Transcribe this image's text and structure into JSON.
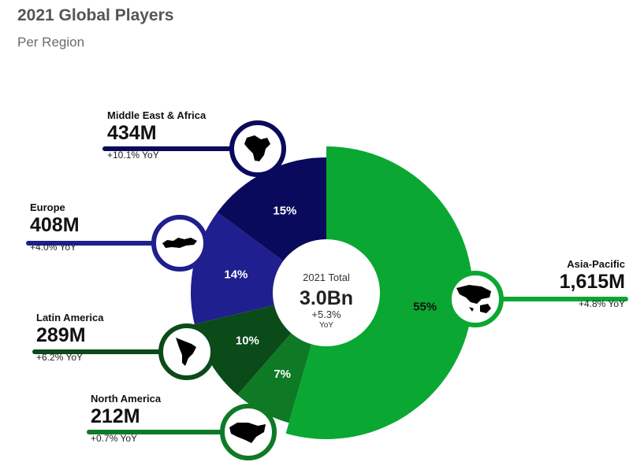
{
  "title": "2021 Global Players",
  "subtitle": "Per Region",
  "chart_data": {
    "type": "pie",
    "title": "2021 Global Players",
    "subtitle": "Per Region",
    "center": {
      "label": "2021 Total",
      "value": "3.0Bn",
      "growth": "+5.3%",
      "growth_unit": "YoY"
    },
    "slices": [
      {
        "name": "Asia-Pacific",
        "share": 55,
        "share_label": "55%",
        "players": "1,615M",
        "players_m": 1615,
        "yoy": "+4.8% YoY",
        "yoy_pct": 4.8,
        "color": "#0aa832"
      },
      {
        "name": "North America",
        "share": 7,
        "share_label": "7%",
        "players": "212M",
        "players_m": 212,
        "yoy": "+0.7% YoY",
        "yoy_pct": 0.7,
        "color": "#0f7a26"
      },
      {
        "name": "Latin America",
        "share": 10,
        "share_label": "10%",
        "players": "289M",
        "players_m": 289,
        "yoy": "+6.2% YoY",
        "yoy_pct": 6.2,
        "color": "#0b4a19"
      },
      {
        "name": "Europe",
        "share": 14,
        "share_label": "14%",
        "players": "408M",
        "players_m": 408,
        "yoy": "+4.0% YoY",
        "yoy_pct": 4.0,
        "color": "#1f1f8f"
      },
      {
        "name": "Middle East & Africa",
        "share": 15,
        "share_label": "15%",
        "players": "434M",
        "players_m": 434,
        "yoy": "+10.1% YoY",
        "yoy_pct": 10.1,
        "color": "#0a0a5c"
      }
    ]
  },
  "icons": {
    "Asia-Pacific": "asia-pacific-map-icon",
    "North America": "north-america-map-icon",
    "Latin America": "latin-america-map-icon",
    "Europe": "europe-map-icon",
    "Middle East & Africa": "middle-east-africa-map-icon"
  }
}
